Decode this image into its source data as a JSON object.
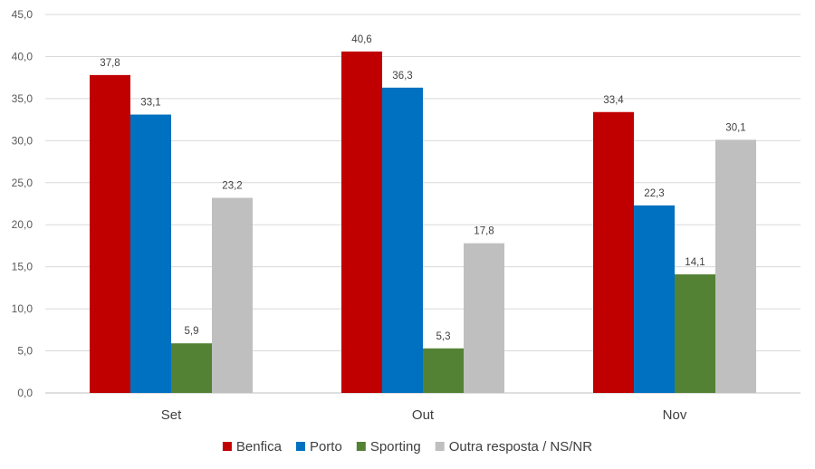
{
  "chart_data": {
    "type": "bar",
    "categories": [
      "Set",
      "Out",
      "Nov"
    ],
    "series": [
      {
        "name": "Benfica",
        "color": "#C00000",
        "values": [
          37.8,
          40.6,
          33.4
        ],
        "labels": [
          "37,8",
          "40,6",
          "33,4"
        ]
      },
      {
        "name": "Porto",
        "color": "#0070C0",
        "values": [
          33.1,
          36.3,
          22.3
        ],
        "labels": [
          "33,1",
          "36,3",
          "22,3"
        ]
      },
      {
        "name": "Sporting",
        "color": "#548235",
        "values": [
          5.9,
          5.3,
          14.1
        ],
        "labels": [
          "5,9",
          "5,3",
          "14,1"
        ]
      },
      {
        "name": "Outra resposta / NS/NR",
        "color": "#BFBFBF",
        "values": [
          23.2,
          17.8,
          30.1
        ],
        "labels": [
          "23,2",
          "17,8",
          "30,1"
        ]
      }
    ],
    "ylim": [
      0,
      45
    ],
    "yticks": [
      0,
      5,
      10,
      15,
      20,
      25,
      30,
      35,
      40,
      45
    ],
    "ytick_labels": [
      "0,0",
      "5,0",
      "10,0",
      "15,0",
      "20,0",
      "25,0",
      "30,0",
      "35,0",
      "40,0",
      "45,0"
    ],
    "grid": true,
    "legend_position": "bottom",
    "title": "",
    "xlabel": "",
    "ylabel": ""
  }
}
